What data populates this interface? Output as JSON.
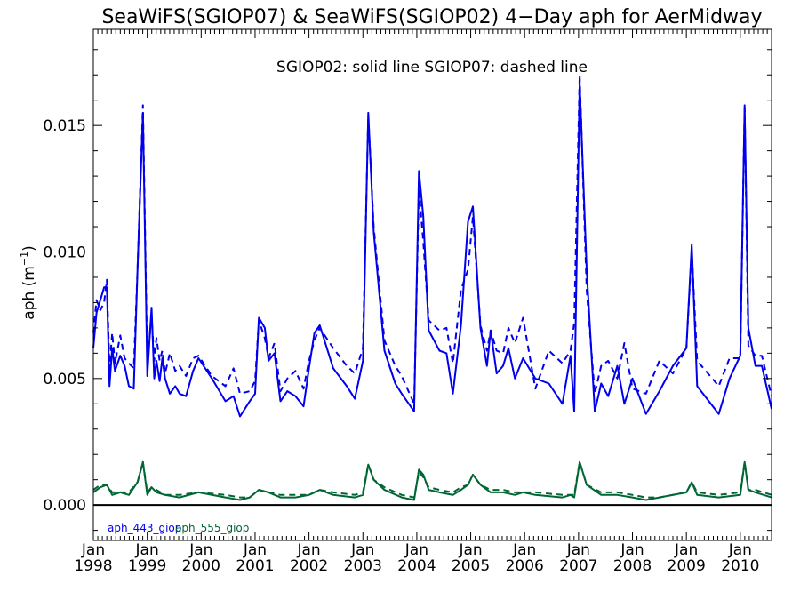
{
  "chart_data": {
    "type": "line",
    "title": "SeaWiFS(SGIOP07) & SeaWiFS(SGIOP02) 4−Day aph for AerMidway",
    "annotation": "SGIOP02: solid line   SGIOP07: dashed line",
    "ylabel_main": "aph (m",
    "ylabel_sup": "−1",
    "ylabel_close": ")",
    "xlim": [
      1998.0,
      2010.58
    ],
    "ylim": [
      -0.0014,
      0.0188
    ],
    "x_ticks": [
      {
        "top": "Jan",
        "bottom": "1998",
        "x": 1998
      },
      {
        "top": "Jan",
        "bottom": "1999",
        "x": 1999
      },
      {
        "top": "Jan",
        "bottom": "2000",
        "x": 2000
      },
      {
        "top": "Jan",
        "bottom": "2001",
        "x": 2001
      },
      {
        "top": "Jan",
        "bottom": "2002",
        "x": 2002
      },
      {
        "top": "Jan",
        "bottom": "2003",
        "x": 2003
      },
      {
        "top": "Jan",
        "bottom": "2004",
        "x": 2004
      },
      {
        "top": "Jan",
        "bottom": "2005",
        "x": 2005
      },
      {
        "top": "Jan",
        "bottom": "2006",
        "x": 2006
      },
      {
        "top": "Jan",
        "bottom": "2007",
        "x": 2007
      },
      {
        "top": "Jan",
        "bottom": "2008",
        "x": 2008
      },
      {
        "top": "Jan",
        "bottom": "2009",
        "x": 2009
      },
      {
        "top": "Jan",
        "bottom": "2010",
        "x": 2010
      }
    ],
    "y_ticks": [
      {
        "label": "0.000",
        "value": 0.0
      },
      {
        "label": "0.005",
        "value": 0.005
      },
      {
        "label": "0.010",
        "value": 0.01
      },
      {
        "label": "0.015",
        "value": 0.015
      }
    ],
    "zero_line": 0.0,
    "legend": [
      {
        "label": "aph_443_giop",
        "color": "#0000ee"
      },
      {
        "label": "aph_555_giop",
        "color": "#006633"
      }
    ],
    "series": [
      {
        "name": "aph_443_giop",
        "color": "#0000ee",
        "dash": "solid",
        "x": [
          1998.0,
          1998.06,
          1998.13,
          1998.2,
          1998.25,
          1998.3,
          1998.35,
          1998.4,
          1998.5,
          1998.58,
          1998.66,
          1998.75,
          1998.82,
          1998.92,
          1999.0,
          1999.08,
          1999.13,
          1999.17,
          1999.23,
          1999.28,
          1999.33,
          1999.42,
          1999.52,
          1999.6,
          1999.72,
          1999.85,
          1999.95,
          2000.2,
          2000.45,
          2000.6,
          2000.72,
          2000.9,
          2001.0,
          2001.07,
          2001.18,
          2001.25,
          2001.36,
          2001.47,
          2001.6,
          2001.75,
          2001.9,
          2002.0,
          2002.1,
          2002.2,
          2002.45,
          2002.7,
          2002.85,
          2003.0,
          2003.1,
          2003.2,
          2003.4,
          2003.6,
          2003.72,
          2003.95,
          2004.04,
          2004.12,
          2004.22,
          2004.42,
          2004.55,
          2004.67,
          2004.82,
          2004.95,
          2005.04,
          2005.18,
          2005.3,
          2005.37,
          2005.48,
          2005.6,
          2005.7,
          2005.82,
          2005.97,
          2006.2,
          2006.45,
          2006.7,
          2006.85,
          2006.92,
          2007.02,
          2007.15,
          2007.3,
          2007.42,
          2007.55,
          2007.72,
          2007.85,
          2008.0,
          2008.25,
          2008.5,
          2008.75,
          2009.0,
          2009.1,
          2009.2,
          2009.6,
          2009.8,
          2010.0,
          2010.08,
          2010.15,
          2010.28,
          2010.4,
          2010.58
        ],
        "y": [
          0.0062,
          0.0076,
          0.0081,
          0.0086,
          0.0086,
          0.0047,
          0.0062,
          0.0053,
          0.0059,
          0.0055,
          0.0047,
          0.0046,
          0.0093,
          0.0155,
          0.0051,
          0.0078,
          0.005,
          0.0057,
          0.0049,
          0.0058,
          0.005,
          0.0044,
          0.0047,
          0.0044,
          0.0043,
          0.0053,
          0.0058,
          0.005,
          0.0041,
          0.0043,
          0.0035,
          0.0041,
          0.0044,
          0.0074,
          0.007,
          0.0057,
          0.006,
          0.0041,
          0.0045,
          0.0043,
          0.0039,
          0.0054,
          0.0068,
          0.0071,
          0.0054,
          0.0047,
          0.0042,
          0.0057,
          0.0155,
          0.0108,
          0.0061,
          0.0048,
          0.0044,
          0.0037,
          0.0132,
          0.0114,
          0.0069,
          0.0061,
          0.006,
          0.0044,
          0.0071,
          0.0112,
          0.0118,
          0.007,
          0.0055,
          0.0069,
          0.0052,
          0.0055,
          0.0062,
          0.005,
          0.0058,
          0.005,
          0.0048,
          0.004,
          0.0059,
          0.0037,
          0.0167,
          0.0093,
          0.0037,
          0.0048,
          0.0043,
          0.0055,
          0.004,
          0.005,
          0.0036,
          0.0045,
          0.0055,
          0.0062,
          0.0103,
          0.0047,
          0.0036,
          0.005,
          0.0059,
          0.0158,
          0.007,
          0.0055,
          0.0055,
          0.0038
        ]
      },
      {
        "name": "",
        "color": "#0000ee",
        "dash": "dashed",
        "x": [
          1998.0,
          1998.06,
          1998.13,
          1998.2,
          1998.25,
          1998.3,
          1998.35,
          1998.4,
          1998.5,
          1998.58,
          1998.66,
          1998.75,
          1998.82,
          1998.92,
          1999.0,
          1999.08,
          1999.13,
          1999.17,
          1999.23,
          1999.28,
          1999.33,
          1999.42,
          1999.52,
          1999.6,
          1999.72,
          1999.85,
          1999.95,
          2000.2,
          2000.45,
          2000.6,
          2000.72,
          2000.9,
          2001.0,
          2001.07,
          2001.18,
          2001.25,
          2001.36,
          2001.47,
          2001.6,
          2001.75,
          2001.9,
          2002.0,
          2002.1,
          2002.2,
          2002.45,
          2002.7,
          2002.85,
          2003.0,
          2003.1,
          2003.2,
          2003.4,
          2003.6,
          2003.72,
          2003.95,
          2004.04,
          2004.12,
          2004.22,
          2004.42,
          2004.55,
          2004.67,
          2004.82,
          2004.95,
          2005.04,
          2005.18,
          2005.3,
          2005.37,
          2005.48,
          2005.6,
          2005.7,
          2005.82,
          2005.97,
          2006.2,
          2006.45,
          2006.7,
          2006.85,
          2006.92,
          2007.02,
          2007.15,
          2007.3,
          2007.42,
          2007.55,
          2007.72,
          2007.85,
          2008.0,
          2008.25,
          2008.5,
          2008.75,
          2009.0,
          2009.1,
          2009.2,
          2009.6,
          2009.8,
          2010.0,
          2010.08,
          2010.15,
          2010.28,
          2010.4,
          2010.58
        ],
        "y": [
          0.0068,
          0.0081,
          0.0077,
          0.008,
          0.0089,
          0.0054,
          0.0068,
          0.0056,
          0.0067,
          0.0058,
          0.0056,
          0.0054,
          0.0093,
          0.0158,
          0.0056,
          0.0075,
          0.0057,
          0.0066,
          0.0057,
          0.0061,
          0.0052,
          0.006,
          0.0053,
          0.0055,
          0.0051,
          0.0058,
          0.0059,
          0.0051,
          0.0047,
          0.0054,
          0.0044,
          0.0045,
          0.0049,
          0.0073,
          0.0066,
          0.0058,
          0.0064,
          0.0045,
          0.005,
          0.0053,
          0.0046,
          0.0057,
          0.0065,
          0.007,
          0.0062,
          0.0055,
          0.0052,
          0.0062,
          0.0154,
          0.011,
          0.0065,
          0.0055,
          0.0051,
          0.004,
          0.0125,
          0.0104,
          0.0073,
          0.0069,
          0.007,
          0.0056,
          0.0085,
          0.0093,
          0.0114,
          0.0071,
          0.0061,
          0.0069,
          0.0061,
          0.006,
          0.007,
          0.0064,
          0.0074,
          0.0046,
          0.0061,
          0.0056,
          0.0061,
          0.0072,
          0.017,
          0.0085,
          0.0044,
          0.0055,
          0.0057,
          0.005,
          0.0064,
          0.0046,
          0.0044,
          0.0057,
          0.0052,
          0.0062,
          0.0101,
          0.0057,
          0.0047,
          0.0058,
          0.0058,
          0.0157,
          0.0063,
          0.0059,
          0.0059,
          0.0043
        ]
      },
      {
        "name": "aph_555_giop",
        "color": "#006633",
        "dash": "solid",
        "x": [
          1998.0,
          1998.13,
          1998.25,
          1998.35,
          1998.5,
          1998.66,
          1998.82,
          1998.92,
          1999.0,
          1999.08,
          1999.17,
          1999.33,
          1999.6,
          1999.95,
          2000.45,
          2000.72,
          2000.9,
          2001.07,
          2001.25,
          2001.47,
          2001.75,
          2002.0,
          2002.2,
          2002.45,
          2002.85,
          2003.0,
          2003.1,
          2003.2,
          2003.4,
          2003.72,
          2003.95,
          2004.04,
          2004.12,
          2004.22,
          2004.42,
          2004.67,
          2004.82,
          2004.95,
          2005.04,
          2005.18,
          2005.37,
          2005.6,
          2005.82,
          2005.97,
          2006.2,
          2006.7,
          2006.85,
          2006.92,
          2007.02,
          2007.15,
          2007.42,
          2007.72,
          2008.0,
          2008.25,
          2008.5,
          2009.0,
          2009.1,
          2009.2,
          2009.6,
          2010.0,
          2010.08,
          2010.15,
          2010.28,
          2010.58
        ],
        "y": [
          0.0005,
          0.0007,
          0.0008,
          0.0004,
          0.0005,
          0.0004,
          0.0009,
          0.0017,
          0.0004,
          0.0007,
          0.0005,
          0.0004,
          0.0003,
          0.0005,
          0.0003,
          0.0002,
          0.0003,
          0.0006,
          0.0005,
          0.0003,
          0.0003,
          0.0004,
          0.0006,
          0.0004,
          0.0003,
          0.0004,
          0.0016,
          0.001,
          0.0006,
          0.0003,
          0.0002,
          0.0014,
          0.0012,
          0.0006,
          0.0005,
          0.0004,
          0.0006,
          0.0008,
          0.0012,
          0.0008,
          0.0005,
          0.0005,
          0.0004,
          0.0005,
          0.0004,
          0.0003,
          0.0004,
          0.0003,
          0.0017,
          0.0008,
          0.0004,
          0.0004,
          0.0003,
          0.0002,
          0.0003,
          0.0005,
          0.0009,
          0.0004,
          0.0003,
          0.0004,
          0.0017,
          0.0006,
          0.0005,
          0.0003
        ]
      },
      {
        "name": "",
        "color": "#006633",
        "dash": "dashed",
        "x": [
          1998.0,
          1998.13,
          1998.25,
          1998.35,
          1998.5,
          1998.66,
          1998.82,
          1998.92,
          1999.0,
          1999.08,
          1999.17,
          1999.33,
          1999.6,
          1999.95,
          2000.45,
          2000.72,
          2000.9,
          2001.07,
          2001.25,
          2001.47,
          2001.75,
          2002.0,
          2002.2,
          2002.45,
          2002.85,
          2003.0,
          2003.1,
          2003.2,
          2003.4,
          2003.72,
          2003.95,
          2004.04,
          2004.12,
          2004.22,
          2004.42,
          2004.67,
          2004.82,
          2004.95,
          2005.04,
          2005.18,
          2005.37,
          2005.6,
          2005.82,
          2005.97,
          2006.2,
          2006.7,
          2006.85,
          2006.92,
          2007.02,
          2007.15,
          2007.42,
          2007.72,
          2008.0,
          2008.25,
          2008.5,
          2009.0,
          2009.1,
          2009.2,
          2009.6,
          2010.0,
          2010.08,
          2010.15,
          2010.28,
          2010.58
        ],
        "y": [
          0.0006,
          0.0008,
          0.0008,
          0.0005,
          0.0005,
          0.0005,
          0.0009,
          0.0017,
          0.0005,
          0.0007,
          0.0006,
          0.0004,
          0.0004,
          0.0005,
          0.0004,
          0.0003,
          0.0003,
          0.0006,
          0.0005,
          0.0004,
          0.0004,
          0.0004,
          0.0006,
          0.0005,
          0.0004,
          0.0005,
          0.0016,
          0.001,
          0.0007,
          0.0004,
          0.0003,
          0.0013,
          0.0011,
          0.0007,
          0.0006,
          0.0005,
          0.0007,
          0.0008,
          0.0012,
          0.0008,
          0.0006,
          0.0006,
          0.0005,
          0.0005,
          0.0005,
          0.0004,
          0.0004,
          0.0004,
          0.0017,
          0.0008,
          0.0005,
          0.0005,
          0.0004,
          0.0003,
          0.0003,
          0.0005,
          0.0009,
          0.0005,
          0.0004,
          0.0005,
          0.0017,
          0.0006,
          0.0006,
          0.0004
        ]
      }
    ]
  }
}
